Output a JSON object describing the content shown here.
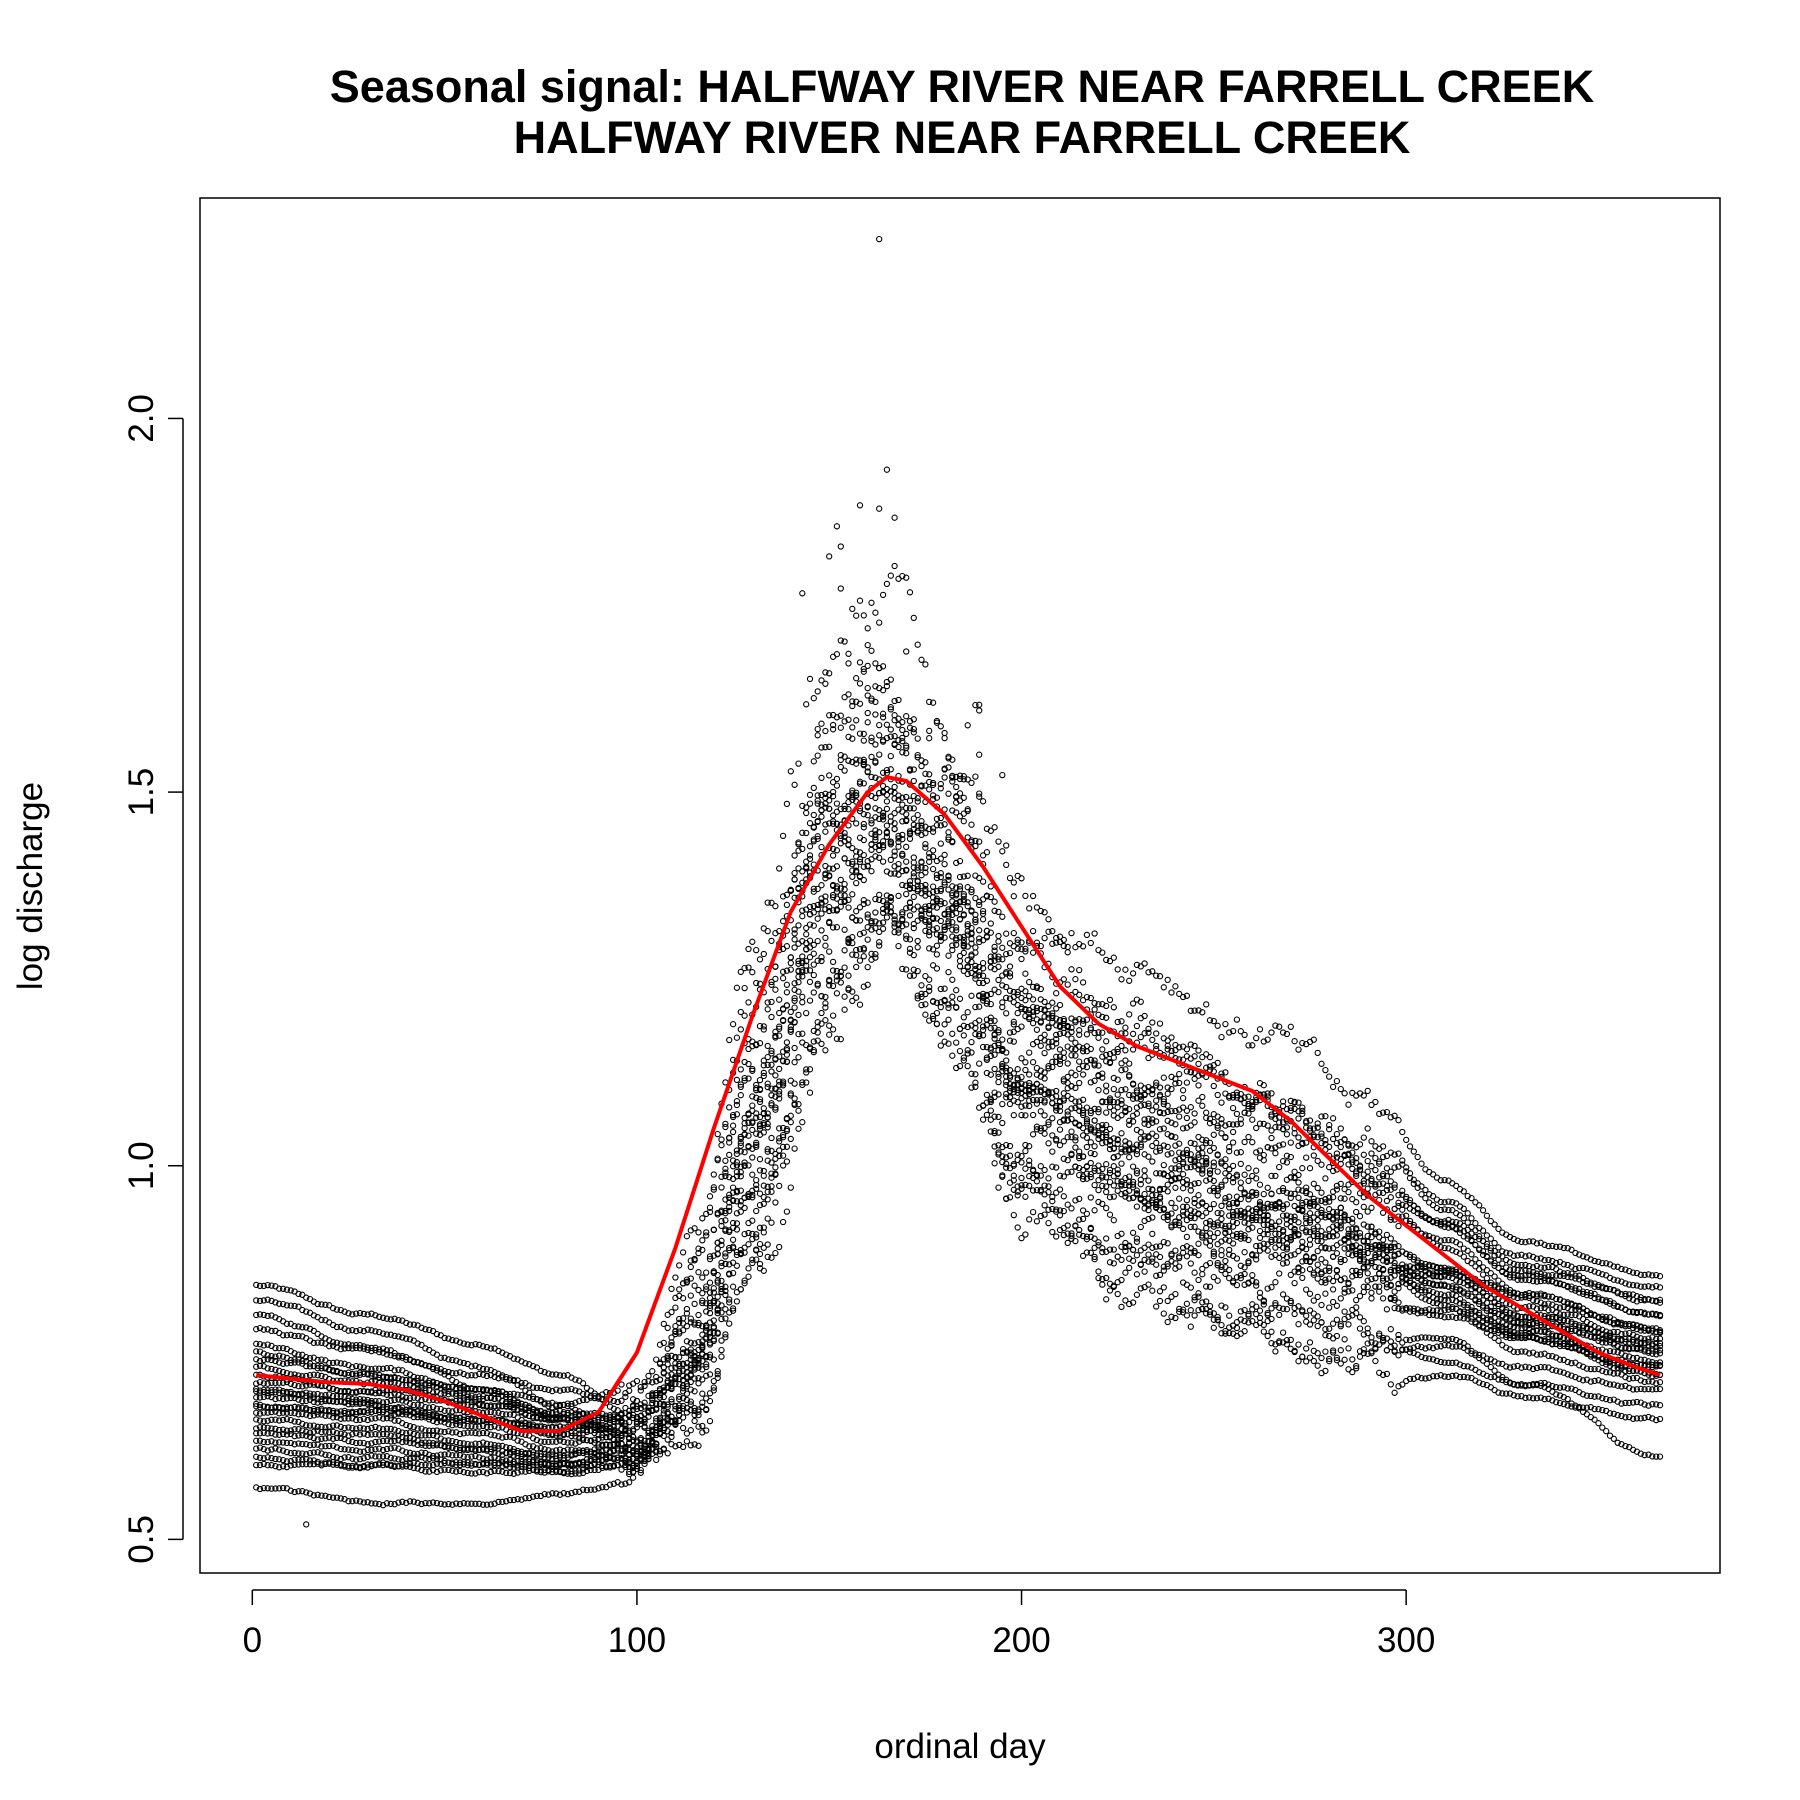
{
  "chart_data": {
    "type": "scatter",
    "title_line1": "Seasonal signal: HALFWAY RIVER NEAR FARRELL CREEK",
    "title_line2": "HALFWAY RIVER NEAR FARRELL CREEK",
    "xlabel": "ordinal day",
    "ylabel": "log discharge",
    "xlim": [
      -13.6,
      381.6
    ],
    "ylim": [
      0.455,
      2.295
    ],
    "x_ticks": [
      "0",
      "100",
      "200",
      "300"
    ],
    "x_tick_values": [
      0,
      100,
      200,
      300
    ],
    "y_ticks": [
      "0.5",
      "1.0",
      "1.5",
      "2.0"
    ],
    "y_tick_values": [
      0.5,
      1.0,
      1.5,
      2.0
    ],
    "grid": false,
    "legend": "none",
    "point_series": {
      "name": "daily log discharge (one trace per year)",
      "color": "#000000",
      "marker": "open-circle",
      "x_range": [
        1,
        366
      ],
      "year_traces": 24,
      "trace_anchor_values_doy": [
        0,
        30,
        60,
        80,
        100,
        115,
        130,
        150,
        165,
        180,
        200,
        230,
        260,
        290,
        310,
        330,
        366
      ],
      "trace_anchor_values_logq": [
        [
          0.84,
          0.8,
          0.76,
          0.72,
          0.66,
          0.75,
          1.05,
          1.5,
          1.6,
          1.45,
          1.25,
          1.15,
          1.05,
          0.98,
          0.93,
          0.87,
          0.82
        ],
        [
          0.82,
          0.78,
          0.73,
          0.68,
          0.62,
          0.7,
          0.98,
          1.42,
          1.55,
          1.38,
          1.15,
          1.05,
          0.96,
          0.9,
          0.86,
          0.83,
          0.78
        ],
        [
          0.8,
          0.76,
          0.7,
          0.66,
          0.64,
          0.8,
          1.15,
          1.58,
          1.7,
          1.5,
          1.3,
          1.2,
          1.1,
          1.02,
          0.95,
          0.88,
          0.84
        ],
        [
          0.78,
          0.75,
          0.72,
          0.7,
          0.68,
          0.85,
          1.2,
          1.48,
          1.52,
          1.4,
          1.22,
          1.12,
          1.08,
          1.0,
          0.92,
          0.85,
          0.8
        ],
        [
          0.76,
          0.73,
          0.7,
          0.67,
          0.66,
          0.78,
          1.08,
          1.4,
          1.45,
          1.35,
          1.1,
          0.98,
          0.92,
          0.88,
          0.84,
          0.79,
          0.75
        ],
        [
          0.75,
          0.72,
          0.69,
          0.66,
          0.64,
          0.72,
          1.0,
          1.35,
          1.42,
          1.3,
          1.05,
          0.95,
          0.88,
          0.85,
          0.81,
          0.77,
          0.73
        ],
        [
          0.74,
          0.72,
          0.7,
          0.68,
          0.7,
          0.92,
          1.3,
          1.62,
          1.75,
          1.55,
          1.35,
          1.28,
          1.18,
          1.08,
          0.98,
          0.9,
          0.85
        ],
        [
          0.73,
          0.71,
          0.69,
          0.67,
          0.66,
          0.74,
          1.02,
          1.38,
          1.48,
          1.32,
          1.12,
          1.02,
          0.95,
          0.9,
          0.86,
          0.8,
          0.76
        ],
        [
          0.72,
          0.7,
          0.68,
          0.66,
          0.65,
          0.82,
          1.12,
          1.45,
          1.5,
          1.42,
          1.2,
          1.1,
          1.02,
          0.96,
          0.9,
          0.83,
          0.78
        ],
        [
          0.71,
          0.7,
          0.68,
          0.66,
          0.64,
          0.7,
          0.95,
          1.3,
          1.38,
          1.25,
          1.0,
          0.9,
          0.84,
          0.82,
          0.8,
          0.77,
          0.72
        ],
        [
          0.7,
          0.69,
          0.67,
          0.65,
          0.63,
          0.69,
          0.92,
          1.25,
          1.35,
          1.22,
          0.98,
          0.86,
          0.8,
          0.78,
          0.76,
          0.73,
          0.7
        ],
        [
          0.7,
          0.68,
          0.66,
          0.64,
          0.66,
          0.88,
          1.25,
          1.55,
          1.62,
          1.48,
          1.28,
          1.18,
          1.1,
          1.02,
          0.94,
          0.86,
          0.82
        ],
        [
          0.69,
          0.68,
          0.66,
          0.64,
          0.62,
          0.68,
          0.9,
          1.28,
          1.4,
          1.3,
          1.08,
          0.96,
          0.88,
          0.85,
          0.82,
          0.78,
          0.74
        ],
        [
          0.68,
          0.67,
          0.65,
          0.63,
          0.64,
          0.78,
          1.1,
          1.44,
          1.52,
          1.4,
          1.18,
          1.06,
          0.98,
          0.92,
          0.87,
          0.81,
          0.77
        ],
        [
          0.68,
          0.67,
          0.66,
          0.65,
          0.67,
          0.84,
          1.18,
          1.5,
          1.58,
          1.46,
          1.24,
          1.14,
          1.06,
          0.99,
          0.92,
          0.85,
          0.8
        ],
        [
          0.67,
          0.66,
          0.64,
          0.62,
          0.61,
          0.67,
          0.88,
          1.22,
          1.32,
          1.2,
          0.96,
          0.84,
          0.78,
          0.76,
          0.74,
          0.71,
          0.68
        ],
        [
          0.66,
          0.65,
          0.63,
          0.61,
          0.62,
          0.74,
          1.04,
          1.4,
          1.48,
          1.36,
          1.14,
          1.02,
          0.94,
          0.9,
          0.85,
          0.79,
          0.75
        ],
        [
          0.65,
          0.64,
          0.62,
          0.6,
          0.6,
          0.66,
          0.86,
          1.2,
          1.3,
          1.18,
          0.94,
          0.82,
          0.76,
          0.74,
          0.72,
          0.69,
          0.66
        ],
        [
          0.64,
          0.63,
          0.62,
          0.61,
          0.63,
          0.76,
          1.06,
          1.42,
          1.5,
          1.38,
          1.16,
          1.04,
          0.96,
          0.91,
          0.86,
          0.8,
          0.76
        ],
        [
          0.63,
          0.62,
          0.61,
          0.6,
          0.61,
          0.72,
          1.0,
          1.36,
          1.44,
          1.32,
          1.1,
          0.99,
          0.92,
          0.88,
          0.83,
          0.77,
          0.73
        ],
        [
          0.62,
          0.61,
          0.6,
          0.59,
          0.6,
          0.7,
          0.96,
          1.32,
          1.4,
          1.28,
          1.06,
          0.95,
          0.89,
          0.86,
          0.81,
          0.75,
          0.71
        ],
        [
          0.61,
          0.6,
          0.6,
          0.6,
          0.62,
          0.8,
          1.14,
          1.46,
          1.54,
          1.42,
          1.2,
          1.08,
          1.0,
          0.94,
          0.89,
          0.82,
          0.78
        ],
        [
          0.6,
          0.6,
          0.59,
          0.59,
          0.61,
          0.74,
          1.02,
          1.38,
          1.46,
          1.34,
          1.12,
          1.01,
          0.93,
          0.89,
          0.84,
          0.78,
          0.72
        ],
        [
          0.57,
          0.55,
          0.55,
          0.56,
          0.58,
          0.66,
          0.9,
          1.26,
          1.36,
          1.24,
          1.02,
          0.9,
          0.83,
          0.8,
          0.77,
          0.71,
          0.61
        ]
      ],
      "approx_max": [
        163,
        2.24
      ],
      "approx_min": [
        14,
        0.52
      ]
    },
    "series": [
      {
        "color": "#ff0000",
        "x": [
          1,
          10,
          20,
          30,
          40,
          50,
          60,
          70,
          80,
          90,
          100,
          110,
          120,
          130,
          140,
          150,
          160,
          165,
          170,
          180,
          190,
          200,
          210,
          220,
          230,
          240,
          250,
          260,
          270,
          280,
          290,
          300,
          310,
          320,
          330,
          340,
          350,
          360,
          366
        ],
        "y": [
          0.72,
          0.715,
          0.71,
          0.708,
          0.7,
          0.685,
          0.665,
          0.645,
          0.645,
          0.67,
          0.75,
          0.89,
          1.05,
          1.2,
          1.34,
          1.43,
          1.5,
          1.52,
          1.515,
          1.47,
          1.4,
          1.32,
          1.24,
          1.19,
          1.16,
          1.14,
          1.12,
          1.1,
          1.06,
          1.01,
          0.96,
          0.92,
          0.88,
          0.84,
          0.81,
          0.78,
          0.75,
          0.73,
          0.72
        ]
      }
    ]
  }
}
